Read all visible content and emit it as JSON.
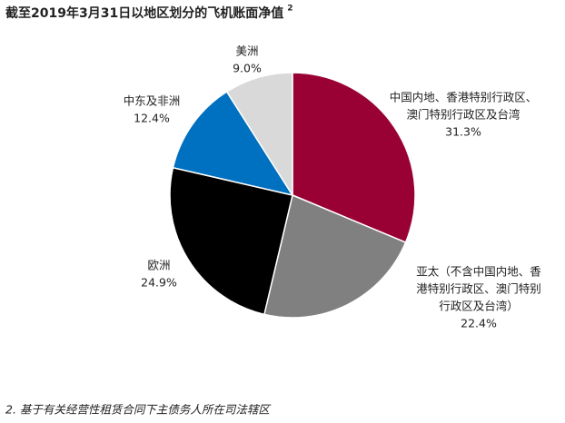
{
  "chart_data": {
    "type": "pie",
    "title": "截至2019年3月31日以地区划分的飞机账面净值",
    "title_superscript": "2",
    "categories": [
      [
        "中国内地、香港特别行政区、",
        "澳门特别行政区及台湾"
      ],
      [
        "亚太（不含中国内地、香",
        "港特别行政区、澳门特别",
        "行政区及台湾）"
      ],
      [
        "欧洲"
      ],
      [
        "中东及非洲"
      ],
      [
        "美洲"
      ]
    ],
    "values": [
      31.3,
      22.4,
      24.9,
      12.4,
      9.0
    ],
    "value_labels": [
      "31.3%",
      "22.4%",
      "24.9%",
      "12.4%",
      "9.0%"
    ],
    "colors": [
      "#990033",
      "#808080",
      "#000000",
      "#0070c0",
      "#d9d9d9"
    ],
    "footnote": "2. 基于有关经营性租赁合同下主债务人所在司法辖区"
  }
}
